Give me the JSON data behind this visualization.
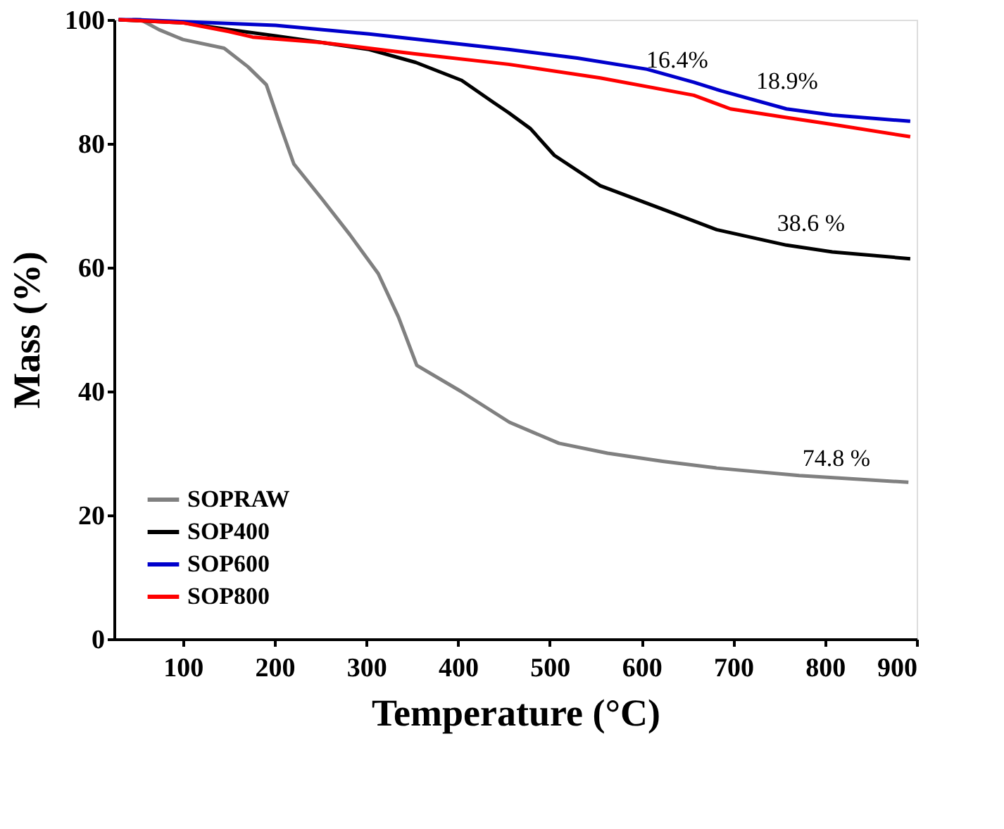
{
  "chart_data": {
    "type": "line",
    "xlabel": "Temperature (°C)",
    "ylabel": "Mass (%)",
    "xlim": [
      25,
      900
    ],
    "ylim": [
      0,
      100
    ],
    "xticks": [
      100,
      200,
      300,
      400,
      500,
      600,
      700,
      800,
      900
    ],
    "yticks": [
      0,
      20,
      40,
      60,
      80,
      100
    ],
    "grid": false,
    "legend": "bottom left",
    "line_style": "solid",
    "marker": "none",
    "series": [
      {
        "name": "SOPRAW",
        "color": "#808080",
        "x": [
          45,
          54,
          74,
          100,
          145,
          171,
          191,
          206,
          221,
          252,
          282,
          313,
          335,
          355,
          403,
          456,
          510,
          563,
          623,
          682,
          772,
          891
        ],
        "values": [
          100,
          100,
          98.4,
          96.8,
          95.4,
          92.4,
          89.5,
          83,
          76.7,
          71,
          65.3,
          59,
          52,
          44.2,
          40,
          35,
          31.6,
          30,
          28.7,
          27.6,
          26.4,
          25.3
        ]
      },
      {
        "name": "SOP400",
        "color": "#000000",
        "x": [
          30,
          100,
          150,
          201,
          252,
          303,
          354,
          404,
          438,
          455,
          479,
          505,
          555,
          632,
          682,
          758,
          808,
          893
        ],
        "values": [
          100,
          99.5,
          98.4,
          97.4,
          96.3,
          95.2,
          93.1,
          90.2,
          86.7,
          85,
          82.4,
          78.1,
          73.2,
          68.9,
          66.1,
          63.6,
          62.5,
          61.4
        ]
      },
      {
        "name": "SOP600",
        "color": "#0000cc",
        "x": [
          30,
          49,
          201,
          303,
          455,
          530,
          606,
          657,
          687,
          758,
          808,
          893
        ],
        "values": [
          100,
          100,
          99.1,
          97.7,
          95.2,
          93.8,
          92,
          89.9,
          88.5,
          85.6,
          84.6,
          83.6
        ]
      },
      {
        "name": "SOP800",
        "color": "#ff0000",
        "x": [
          30,
          100,
          150,
          176,
          252,
          353,
          455,
          555,
          657,
          697,
          758,
          808,
          893
        ],
        "values": [
          100,
          99.5,
          98.1,
          97.2,
          96.3,
          94.5,
          92.8,
          90.6,
          87.8,
          85.6,
          84.2,
          83.1,
          81.1
        ]
      }
    ],
    "annotations": [
      "16.4%",
      "18.9%",
      "38.6 %",
      "74.8 %"
    ]
  }
}
